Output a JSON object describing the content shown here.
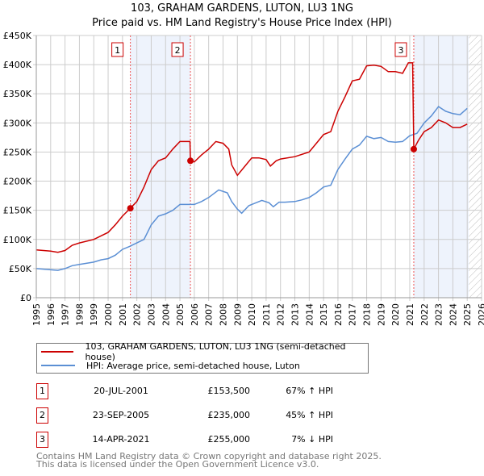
{
  "chart_data": {
    "type": "line",
    "title": "103, GRAHAM GARDENS, LUTON, LU3 1NG",
    "subtitle": "Price paid vs. HM Land Registry's House Price Index (HPI)",
    "xlabel": "",
    "ylabel": "",
    "xlim": [
      1995,
      2026
    ],
    "ylim": [
      0,
      450000
    ],
    "x_ticks": [
      "1995",
      "1996",
      "1997",
      "1998",
      "1999",
      "2000",
      "2001",
      "2002",
      "2003",
      "2004",
      "2005",
      "2006",
      "2007",
      "2008",
      "2009",
      "2010",
      "2011",
      "2012",
      "2013",
      "2014",
      "2015",
      "2016",
      "2017",
      "2018",
      "2019",
      "2020",
      "2021",
      "2022",
      "2023",
      "2024",
      "2025",
      "2026"
    ],
    "y_ticks": [
      {
        "v": 0,
        "label": "£0"
      },
      {
        "v": 50000,
        "label": "£50K"
      },
      {
        "v": 100000,
        "label": "£100K"
      },
      {
        "v": 150000,
        "label": "£150K"
      },
      {
        "v": 200000,
        "label": "£200K"
      },
      {
        "v": 250000,
        "label": "£250K"
      },
      {
        "v": 300000,
        "label": "£300K"
      },
      {
        "v": 350000,
        "label": "£350K"
      },
      {
        "v": 400000,
        "label": "£400K"
      },
      {
        "v": 450000,
        "label": "£450K"
      }
    ],
    "grid": true,
    "hatched_after": 2025.1,
    "series": [
      {
        "name": "103, GRAHAM GARDENS, LUTON, LU3 1NG (semi-detached house)",
        "color": "#cc0000",
        "x": [
          1995,
          1996,
          1996.5,
          1997,
          1997.5,
          1998,
          1999,
          1999.5,
          2000,
          2000.5,
          2001,
          2001.55,
          2002,
          2002.5,
          2003,
          2003.5,
          2004,
          2004.5,
          2005,
          2005.5,
          2005.7,
          2005.73,
          2006,
          2006.5,
          2007,
          2007.5,
          2008,
          2008.4,
          2008.6,
          2009,
          2009.5,
          2010,
          2010.5,
          2011,
          2011.3,
          2011.7,
          2012,
          2013,
          2014,
          2014.5,
          2015,
          2015.5,
          2016,
          2016.5,
          2017,
          2017.5,
          2018,
          2018.5,
          2019,
          2019.5,
          2020,
          2020.5,
          2020.9,
          2021.2,
          2021.28,
          2021.6,
          2022,
          2022.5,
          2023,
          2023.5,
          2024,
          2024.5,
          2025
        ],
        "y": [
          82000,
          80000,
          78000,
          81000,
          90000,
          94000,
          100000,
          106000,
          112000,
          125000,
          140000,
          153500,
          165000,
          190000,
          220000,
          235000,
          240000,
          255000,
          268000,
          268000,
          268000,
          235000,
          233000,
          245000,
          255000,
          268000,
          265000,
          255000,
          228000,
          210000,
          225000,
          240000,
          240000,
          237000,
          226000,
          235000,
          238000,
          242000,
          250000,
          265000,
          280000,
          285000,
          320000,
          345000,
          372000,
          375000,
          398000,
          399000,
          397000,
          388000,
          388000,
          385000,
          403000,
          403000,
          255000,
          270000,
          285000,
          292000,
          305000,
          300000,
          292000,
          292000,
          298000
        ]
      },
      {
        "name": "HPI: Average price, semi-detached house, Luton",
        "color": "#5b8fd4",
        "x": [
          1995,
          1996.5,
          1997,
          1997.5,
          1998,
          1999,
          1999.5,
          2000,
          2000.5,
          2001,
          2001.5,
          2002,
          2002.5,
          2003,
          2003.5,
          2004,
          2004.5,
          2005,
          2005.5,
          2006,
          2006.5,
          2007,
          2007.7,
          2008.3,
          2008.6,
          2009,
          2009.3,
          2009.8,
          2010.3,
          2010.7,
          2011.2,
          2011.5,
          2011.9,
          2012.3,
          2013,
          2013.5,
          2014,
          2014.5,
          2015,
          2015.5,
          2016,
          2016.5,
          2017,
          2017.5,
          2018,
          2018.5,
          2019,
          2019.5,
          2020,
          2020.5,
          2021,
          2021.5,
          2022,
          2022.5,
          2023,
          2023.5,
          2024,
          2024.5,
          2025
        ],
        "y": [
          50000,
          47000,
          50000,
          55000,
          57000,
          61000,
          65000,
          67000,
          73000,
          83000,
          88000,
          94000,
          100000,
          125000,
          140000,
          144000,
          150000,
          160000,
          160000,
          160000,
          165000,
          172000,
          185000,
          180000,
          165000,
          152000,
          145000,
          158000,
          163000,
          167000,
          163000,
          156000,
          164000,
          164000,
          165000,
          168000,
          172000,
          180000,
          190000,
          193000,
          220000,
          238000,
          255000,
          262000,
          277000,
          273000,
          275000,
          268000,
          267000,
          268000,
          278000,
          282000,
          300000,
          312000,
          328000,
          320000,
          316000,
          314000,
          325000
        ]
      }
    ],
    "sales": [
      {
        "label": "1",
        "x": 2001.55,
        "y": 153500
      },
      {
        "label": "2",
        "x": 2005.73,
        "y": 235000
      },
      {
        "label": "3",
        "x": 2021.28,
        "y": 255000
      }
    ],
    "shaded": [
      [
        2001.55,
        2005.73
      ],
      [
        2021.28,
        2025.1
      ]
    ],
    "legend_position": "below"
  },
  "legend": {
    "items": [
      "103, GRAHAM GARDENS, LUTON, LU3 1NG (semi-detached house)",
      "HPI: Average price, semi-detached house, Luton"
    ]
  },
  "transactions": [
    {
      "num": "1",
      "date": "20-JUL-2001",
      "price": "£153,500",
      "hpi": "67% ↑ HPI"
    },
    {
      "num": "2",
      "date": "23-SEP-2005",
      "price": "£235,000",
      "hpi": "45% ↑ HPI"
    },
    {
      "num": "3",
      "date": "14-APR-2021",
      "price": "£255,000",
      "hpi": "7% ↓ HPI"
    }
  ],
  "footer": {
    "line1": "Contains HM Land Registry data © Crown copyright and database right 2025.",
    "line2": "This data is licensed under the Open Government Licence v3.0."
  }
}
